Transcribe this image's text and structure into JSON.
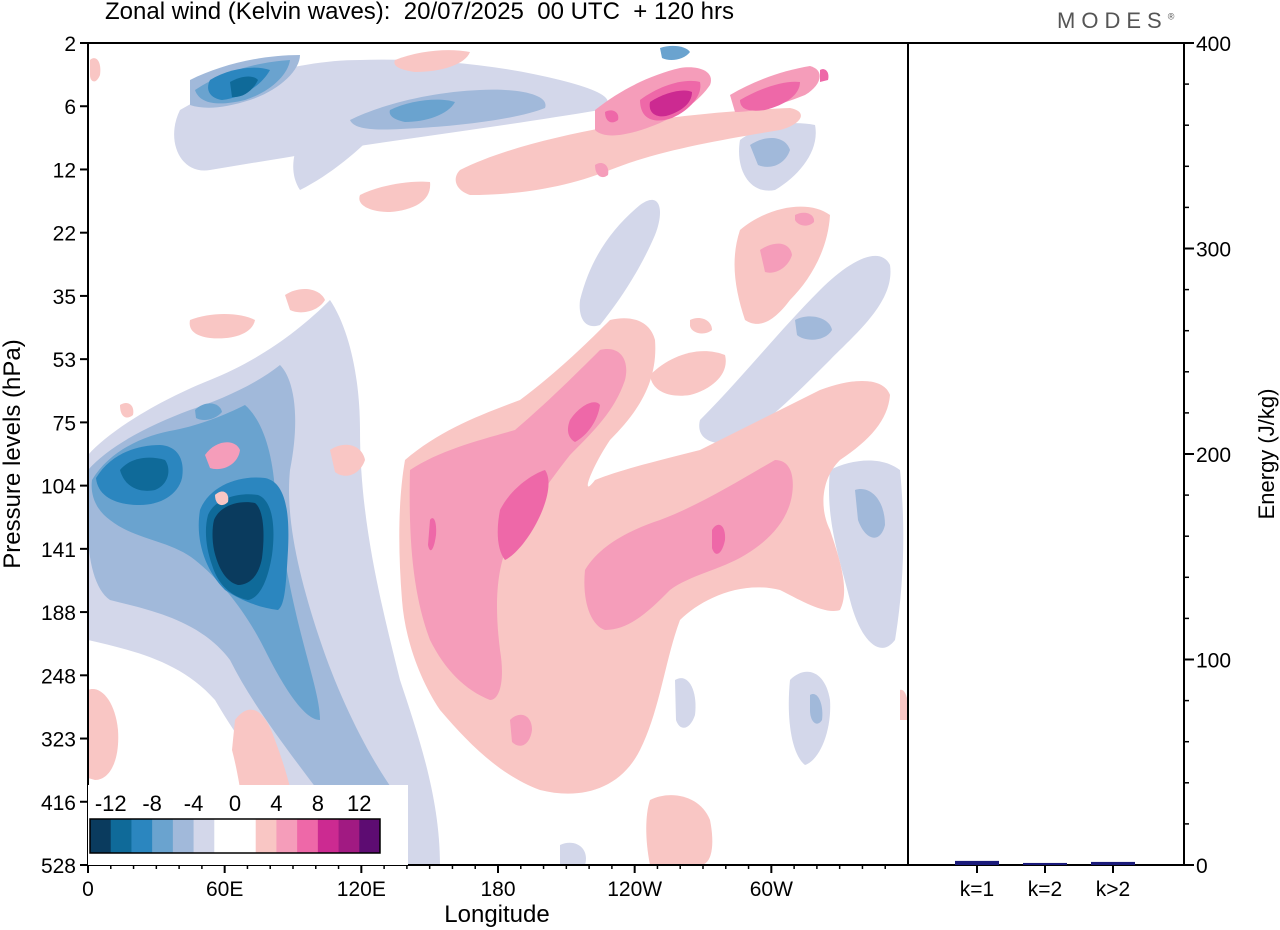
{
  "title": "Zonal wind (Kelvin waves):  20/07/2025  00 UTC  + 120 hrs",
  "brand": "MODES",
  "brand_mark": "®",
  "chart_data": [
    {
      "type": "heatmap",
      "title": "Zonal wind (Kelvin waves):  20/07/2025  00 UTC  + 120 hrs",
      "xlabel": "Longitude",
      "ylabel": "Pressure levels (hPa)",
      "x_ticks": [
        "0",
        "60E",
        "120E",
        "180",
        "120W",
        "60W"
      ],
      "x_tick_deg": [
        0,
        60,
        120,
        180,
        240,
        300
      ],
      "xlim": [
        0,
        360
      ],
      "y_ticks": [
        "2",
        "6",
        "12",
        "22",
        "35",
        "53",
        "75",
        "104",
        "141",
        "188",
        "248",
        "323",
        "416",
        "528"
      ],
      "colorbar": {
        "labels": [
          "-12",
          "-8",
          "-4",
          "0",
          "4",
          "8",
          "12"
        ],
        "colors": [
          "#0a3b5e",
          "#0f6a99",
          "#2b86bf",
          "#6aa3cf",
          "#a1b9da",
          "#d3d7ea",
          "#ffffff",
          "#ffffff",
          "#f9c6c4",
          "#f59dba",
          "#ee68a8",
          "#cc2a91",
          "#a11a82",
          "#5d0c72"
        ]
      },
      "features": [
        {
          "name": "negative-core-60E-141hPa",
          "lon": 65,
          "level": "141",
          "value": -14
        },
        {
          "name": "negative-center-30E-104hPa",
          "lon": 30,
          "level": "104",
          "value": -10
        },
        {
          "name": "negative-band-upper-west",
          "lon": 70,
          "level": "6",
          "value": -8
        },
        {
          "name": "positive-band-180-120W",
          "lon": 190,
          "level": "141",
          "value": 9
        },
        {
          "name": "positive-band-120W-60W",
          "lon": 270,
          "level": "141",
          "value": 8
        },
        {
          "name": "positive-upper-120W-6hPa",
          "lon": 258,
          "level": "6",
          "value": 11
        }
      ]
    },
    {
      "type": "bar",
      "ylabel": "Energy (J/kg)",
      "categories": [
        "k=1",
        "k=2",
        "k>2"
      ],
      "values": [
        2,
        1,
        1.5
      ],
      "ylim": [
        0,
        400
      ],
      "y_ticks": [
        "0",
        "100",
        "200",
        "300",
        "400"
      ],
      "bar_color": "#1a1a7a"
    }
  ]
}
